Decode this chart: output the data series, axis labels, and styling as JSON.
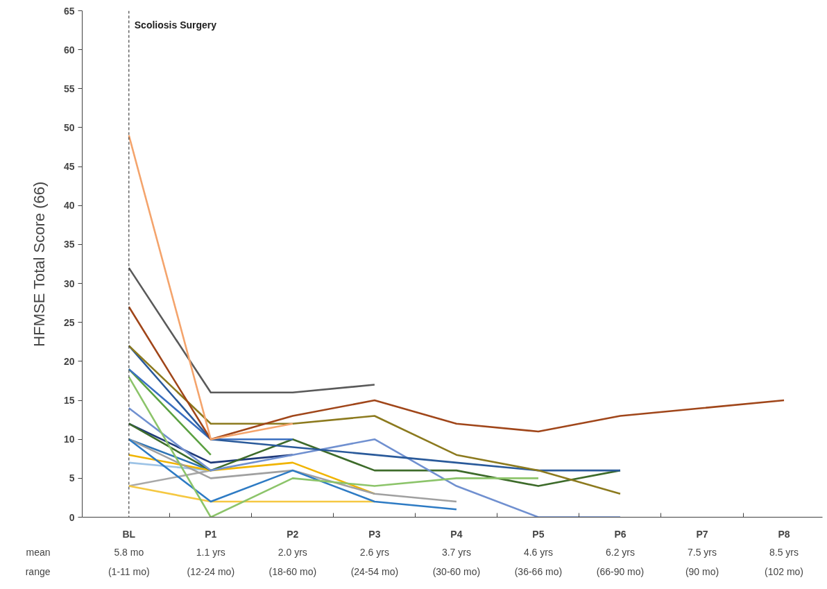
{
  "chart_data": {
    "type": "line",
    "ylabel": "HFMSE Total Score (66)",
    "categories": [
      "BL",
      "P1",
      "P2",
      "P3",
      "P4",
      "P5",
      "P6",
      "P7",
      "P8"
    ],
    "ylim": [
      0,
      65
    ],
    "yticks": [
      0,
      5,
      10,
      15,
      20,
      25,
      30,
      35,
      40,
      45,
      50,
      55,
      60,
      65
    ],
    "grid": false,
    "marker": "none",
    "line_style": "solid",
    "ref_lines": [
      {
        "axis": "x",
        "value": "BL",
        "label": "Scoliosis Surgery",
        "color": "#404040",
        "line_style": "dashed"
      }
    ],
    "annotations": [
      "mean",
      "range",
      "5.8 mo",
      "(1-11 mo)",
      "1.1 yrs",
      "(12-24 mo)",
      "2.0 yrs",
      "(18-60 mo)",
      "2.6 yrs",
      "(24-54 mo)",
      "3.7 yrs",
      "(30-60 mo)",
      "4.6 yrs",
      "(36-66 mo)",
      "6.2 yrs",
      "(66-90 mo)",
      "7.5 yrs",
      "(90 mo)",
      "8.5 yrs",
      "(102 mo)"
    ],
    "series": [
      {
        "color": "#a8a8a8",
        "values": [
          4,
          6,
          null,
          null,
          null,
          null,
          null,
          null,
          null
        ]
      },
      {
        "color": "#9dc3e6",
        "values": [
          7,
          6,
          null,
          null,
          null,
          null,
          null,
          null,
          null
        ]
      },
      {
        "color": "#2e75b6",
        "values": [
          10,
          6,
          null,
          null,
          null,
          null,
          null,
          null,
          null
        ]
      },
      {
        "color": "#f5c842",
        "values": [
          4,
          2,
          2,
          2,
          null,
          null,
          null,
          null,
          null
        ]
      },
      {
        "color": "#f0b400",
        "values": [
          8,
          6,
          7,
          3,
          null,
          null,
          null,
          null,
          null
        ]
      },
      {
        "color": "#a0a0a0",
        "values": [
          10,
          5,
          6,
          3,
          2,
          null,
          null,
          null,
          null
        ]
      },
      {
        "color": "#2e7bc4",
        "values": [
          10,
          2,
          6,
          2,
          1,
          null,
          null,
          null,
          null
        ]
      },
      {
        "color": "#1f3a7a",
        "values": [
          12,
          7,
          8,
          null,
          null,
          null,
          null,
          null,
          null
        ]
      },
      {
        "color": "#3d6b2a",
        "values": [
          12,
          6,
          10,
          6,
          6,
          4,
          6,
          null,
          null
        ]
      },
      {
        "color": "#7090d0",
        "values": [
          14,
          6,
          8,
          10,
          4,
          0,
          0,
          null,
          null
        ]
      },
      {
        "color": "#8cc46a",
        "values": [
          18,
          0,
          5,
          4,
          5,
          5,
          null,
          null,
          null
        ]
      },
      {
        "color": "#5aa040",
        "values": [
          19,
          8,
          null,
          null,
          null,
          null,
          null,
          null,
          null
        ]
      },
      {
        "color": "#3a6fc0",
        "values": [
          19,
          10,
          10,
          null,
          null,
          null,
          null,
          null,
          null
        ]
      },
      {
        "color": "#2a5a9a",
        "values": [
          22,
          10,
          9,
          8,
          7,
          6,
          6,
          null,
          null
        ]
      },
      {
        "color": "#8c7a1e",
        "values": [
          22,
          12,
          12,
          13,
          8,
          6,
          3,
          null,
          null
        ]
      },
      {
        "color": "#a0461a",
        "values": [
          27,
          10,
          13,
          15,
          12,
          11,
          13,
          14,
          15
        ]
      },
      {
        "color": "#5a5a5a",
        "values": [
          32,
          16,
          16,
          17,
          null,
          null,
          null,
          null,
          null
        ]
      },
      {
        "color": "#f4a46c",
        "values": [
          49,
          10,
          12,
          null,
          null,
          null,
          null,
          null,
          null
        ]
      }
    ]
  }
}
